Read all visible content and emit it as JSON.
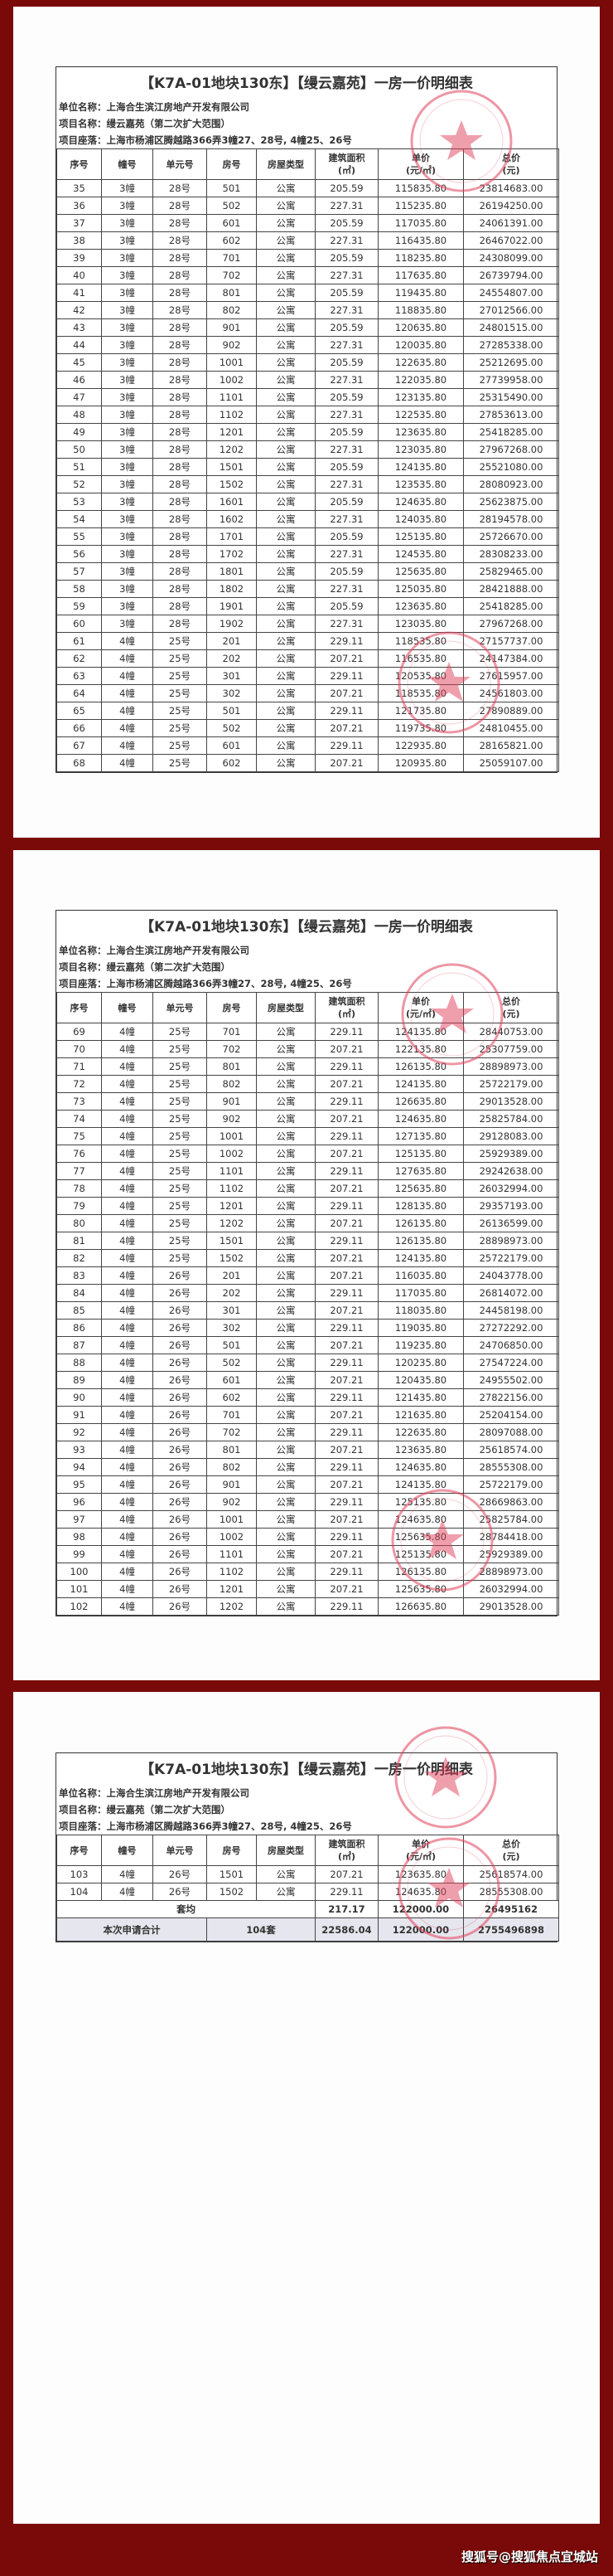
{
  "document": {
    "title": "【K7A-01地块130东】【缦云嘉苑】一房一价明细表",
    "company": "单位名称：上海合生滨江房地产开发有限公司",
    "project": "项目名称：缦云嘉苑（第二次扩大范围）",
    "location": "项目座落：上海市杨浦区腾越路366弄3幢27、28号, 4幢25、26号",
    "columns": [
      "序号",
      "幢号",
      "单元号",
      "房号",
      "房屋类型",
      "建筑面积\n(㎡)",
      "单价\n(元/㎡)",
      "总价\n(元)"
    ],
    "stamp_color": "#e0405a",
    "background_color": "#7a0a0a"
  },
  "pages": [
    {
      "rows": [
        [
          "35",
          "3幢",
          "28号",
          "501",
          "公寓",
          "205.59",
          "115835.80",
          "23814683.00"
        ],
        [
          "36",
          "3幢",
          "28号",
          "502",
          "公寓",
          "227.31",
          "115235.80",
          "26194250.00"
        ],
        [
          "37",
          "3幢",
          "28号",
          "601",
          "公寓",
          "205.59",
          "117035.80",
          "24061391.00"
        ],
        [
          "38",
          "3幢",
          "28号",
          "602",
          "公寓",
          "227.31",
          "116435.80",
          "26467022.00"
        ],
        [
          "39",
          "3幢",
          "28号",
          "701",
          "公寓",
          "205.59",
          "118235.80",
          "24308099.00"
        ],
        [
          "40",
          "3幢",
          "28号",
          "702",
          "公寓",
          "227.31",
          "117635.80",
          "26739794.00"
        ],
        [
          "41",
          "3幢",
          "28号",
          "801",
          "公寓",
          "205.59",
          "119435.80",
          "24554807.00"
        ],
        [
          "42",
          "3幢",
          "28号",
          "802",
          "公寓",
          "227.31",
          "118835.80",
          "27012566.00"
        ],
        [
          "43",
          "3幢",
          "28号",
          "901",
          "公寓",
          "205.59",
          "120635.80",
          "24801515.00"
        ],
        [
          "44",
          "3幢",
          "28号",
          "902",
          "公寓",
          "227.31",
          "120035.80",
          "27285338.00"
        ],
        [
          "45",
          "3幢",
          "28号",
          "1001",
          "公寓",
          "205.59",
          "122635.80",
          "25212695.00"
        ],
        [
          "46",
          "3幢",
          "28号",
          "1002",
          "公寓",
          "227.31",
          "122035.80",
          "27739958.00"
        ],
        [
          "47",
          "3幢",
          "28号",
          "1101",
          "公寓",
          "205.59",
          "123135.80",
          "25315490.00"
        ],
        [
          "48",
          "3幢",
          "28号",
          "1102",
          "公寓",
          "227.31",
          "122535.80",
          "27853613.00"
        ],
        [
          "49",
          "3幢",
          "28号",
          "1201",
          "公寓",
          "205.59",
          "123635.80",
          "25418285.00"
        ],
        [
          "50",
          "3幢",
          "28号",
          "1202",
          "公寓",
          "227.31",
          "123035.80",
          "27967268.00"
        ],
        [
          "51",
          "3幢",
          "28号",
          "1501",
          "公寓",
          "205.59",
          "124135.80",
          "25521080.00"
        ],
        [
          "52",
          "3幢",
          "28号",
          "1502",
          "公寓",
          "227.31",
          "123535.80",
          "28080923.00"
        ],
        [
          "53",
          "3幢",
          "28号",
          "1601",
          "公寓",
          "205.59",
          "124635.80",
          "25623875.00"
        ],
        [
          "54",
          "3幢",
          "28号",
          "1602",
          "公寓",
          "227.31",
          "124035.80",
          "28194578.00"
        ],
        [
          "55",
          "3幢",
          "28号",
          "1701",
          "公寓",
          "205.59",
          "125135.80",
          "25726670.00"
        ],
        [
          "56",
          "3幢",
          "28号",
          "1702",
          "公寓",
          "227.31",
          "124535.80",
          "28308233.00"
        ],
        [
          "57",
          "3幢",
          "28号",
          "1801",
          "公寓",
          "205.59",
          "125635.80",
          "25829465.00"
        ],
        [
          "58",
          "3幢",
          "28号",
          "1802",
          "公寓",
          "227.31",
          "125035.80",
          "28421888.00"
        ],
        [
          "59",
          "3幢",
          "28号",
          "1901",
          "公寓",
          "205.59",
          "123635.80",
          "25418285.00"
        ],
        [
          "60",
          "3幢",
          "28号",
          "1902",
          "公寓",
          "227.31",
          "123035.80",
          "27967268.00"
        ],
        [
          "61",
          "4幢",
          "25号",
          "201",
          "公寓",
          "229.11",
          "118535.80",
          "27157737.00"
        ],
        [
          "62",
          "4幢",
          "25号",
          "202",
          "公寓",
          "207.21",
          "116535.80",
          "24147384.00"
        ],
        [
          "63",
          "4幢",
          "25号",
          "301",
          "公寓",
          "229.11",
          "120535.80",
          "27615957.00"
        ],
        [
          "64",
          "4幢",
          "25号",
          "302",
          "公寓",
          "207.21",
          "118535.80",
          "24561803.00"
        ],
        [
          "65",
          "4幢",
          "25号",
          "501",
          "公寓",
          "229.11",
          "121735.80",
          "27890889.00"
        ],
        [
          "66",
          "4幢",
          "25号",
          "502",
          "公寓",
          "207.21",
          "119735.80",
          "24810455.00"
        ],
        [
          "67",
          "4幢",
          "25号",
          "601",
          "公寓",
          "229.11",
          "122935.80",
          "28165821.00"
        ],
        [
          "68",
          "4幢",
          "25号",
          "602",
          "公寓",
          "207.21",
          "120935.80",
          "25059107.00"
        ]
      ]
    },
    {
      "rows": [
        [
          "69",
          "4幢",
          "25号",
          "701",
          "公寓",
          "229.11",
          "124135.80",
          "28440753.00"
        ],
        [
          "70",
          "4幢",
          "25号",
          "702",
          "公寓",
          "207.21",
          "122135.80",
          "25307759.00"
        ],
        [
          "71",
          "4幢",
          "25号",
          "801",
          "公寓",
          "229.11",
          "126135.80",
          "28898973.00"
        ],
        [
          "72",
          "4幢",
          "25号",
          "802",
          "公寓",
          "207.21",
          "124135.80",
          "25722179.00"
        ],
        [
          "73",
          "4幢",
          "25号",
          "901",
          "公寓",
          "229.11",
          "126635.80",
          "29013528.00"
        ],
        [
          "74",
          "4幢",
          "25号",
          "902",
          "公寓",
          "207.21",
          "124635.80",
          "25825784.00"
        ],
        [
          "75",
          "4幢",
          "25号",
          "1001",
          "公寓",
          "229.11",
          "127135.80",
          "29128083.00"
        ],
        [
          "76",
          "4幢",
          "25号",
          "1002",
          "公寓",
          "207.21",
          "125135.80",
          "25929389.00"
        ],
        [
          "77",
          "4幢",
          "25号",
          "1101",
          "公寓",
          "229.11",
          "127635.80",
          "29242638.00"
        ],
        [
          "78",
          "4幢",
          "25号",
          "1102",
          "公寓",
          "207.21",
          "125635.80",
          "26032994.00"
        ],
        [
          "79",
          "4幢",
          "25号",
          "1201",
          "公寓",
          "229.11",
          "128135.80",
          "29357193.00"
        ],
        [
          "80",
          "4幢",
          "25号",
          "1202",
          "公寓",
          "207.21",
          "126135.80",
          "26136599.00"
        ],
        [
          "81",
          "4幢",
          "25号",
          "1501",
          "公寓",
          "229.11",
          "126135.80",
          "28898973.00"
        ],
        [
          "82",
          "4幢",
          "25号",
          "1502",
          "公寓",
          "207.21",
          "124135.80",
          "25722179.00"
        ],
        [
          "83",
          "4幢",
          "26号",
          "201",
          "公寓",
          "207.21",
          "116035.80",
          "24043778.00"
        ],
        [
          "84",
          "4幢",
          "26号",
          "202",
          "公寓",
          "229.11",
          "117035.80",
          "26814072.00"
        ],
        [
          "85",
          "4幢",
          "26号",
          "301",
          "公寓",
          "207.21",
          "118035.80",
          "24458198.00"
        ],
        [
          "86",
          "4幢",
          "26号",
          "302",
          "公寓",
          "229.11",
          "119035.80",
          "27272292.00"
        ],
        [
          "87",
          "4幢",
          "26号",
          "501",
          "公寓",
          "207.21",
          "119235.80",
          "24706850.00"
        ],
        [
          "88",
          "4幢",
          "26号",
          "502",
          "公寓",
          "229.11",
          "120235.80",
          "27547224.00"
        ],
        [
          "89",
          "4幢",
          "26号",
          "601",
          "公寓",
          "207.21",
          "120435.80",
          "24955502.00"
        ],
        [
          "90",
          "4幢",
          "26号",
          "602",
          "公寓",
          "229.11",
          "121435.80",
          "27822156.00"
        ],
        [
          "91",
          "4幢",
          "26号",
          "701",
          "公寓",
          "207.21",
          "121635.80",
          "25204154.00"
        ],
        [
          "92",
          "4幢",
          "26号",
          "702",
          "公寓",
          "229.11",
          "122635.80",
          "28097088.00"
        ],
        [
          "93",
          "4幢",
          "26号",
          "801",
          "公寓",
          "207.21",
          "123635.80",
          "25618574.00"
        ],
        [
          "94",
          "4幢",
          "26号",
          "802",
          "公寓",
          "229.11",
          "124635.80",
          "28555308.00"
        ],
        [
          "95",
          "4幢",
          "26号",
          "901",
          "公寓",
          "207.21",
          "124135.80",
          "25722179.00"
        ],
        [
          "96",
          "4幢",
          "26号",
          "902",
          "公寓",
          "229.11",
          "125135.80",
          "28669863.00"
        ],
        [
          "97",
          "4幢",
          "26号",
          "1001",
          "公寓",
          "207.21",
          "124635.80",
          "25825784.00"
        ],
        [
          "98",
          "4幢",
          "26号",
          "1002",
          "公寓",
          "229.11",
          "125635.80",
          "28784418.00"
        ],
        [
          "99",
          "4幢",
          "26号",
          "1101",
          "公寓",
          "207.21",
          "125135.80",
          "25929389.00"
        ],
        [
          "100",
          "4幢",
          "26号",
          "1102",
          "公寓",
          "229.11",
          "126135.80",
          "28898973.00"
        ],
        [
          "101",
          "4幢",
          "26号",
          "1201",
          "公寓",
          "207.21",
          "125635.80",
          "26032994.00"
        ],
        [
          "102",
          "4幢",
          "26号",
          "1202",
          "公寓",
          "229.11",
          "126635.80",
          "29013528.00"
        ]
      ]
    },
    {
      "rows": [
        [
          "103",
          "4幢",
          "26号",
          "1501",
          "公寓",
          "207.21",
          "123635.80",
          "25618574.00"
        ],
        [
          "104",
          "4幢",
          "26号",
          "1502",
          "公寓",
          "229.11",
          "124635.80",
          "28555308.00"
        ]
      ],
      "average": {
        "label": "套均",
        "area": "217.17",
        "unit_price": "122000.00",
        "total": "26495162"
      },
      "grand_total": {
        "label": "本次申请合计",
        "count": "104套",
        "area": "22586.04",
        "unit_price": "122000.00",
        "total": "2755496898"
      }
    }
  ],
  "footer": {
    "watermark": "搜狐号@搜狐焦点宜城站"
  }
}
